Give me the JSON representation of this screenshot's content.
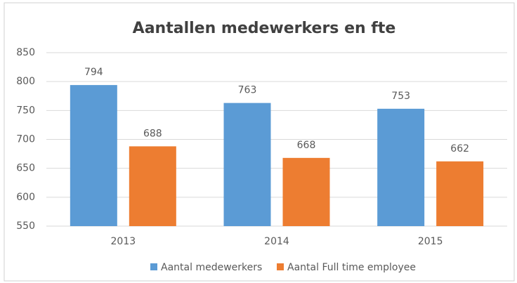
{
  "chart_data": {
    "type": "bar",
    "title": "Aantallen medewerkers en fte",
    "categories": [
      "2013",
      "2014",
      "2015"
    ],
    "series": [
      {
        "name": "Aantal medewerkers",
        "color": "#5b9bd5",
        "values": [
          794,
          763,
          753
        ]
      },
      {
        "name": "Aantal Full time employee",
        "color": "#ed7d31",
        "values": [
          688,
          668,
          662
        ]
      }
    ],
    "ylim": [
      550,
      850
    ],
    "yticks": [
      550,
      600,
      650,
      700,
      750,
      800,
      850
    ],
    "grid": true,
    "legend": "bottom"
  }
}
